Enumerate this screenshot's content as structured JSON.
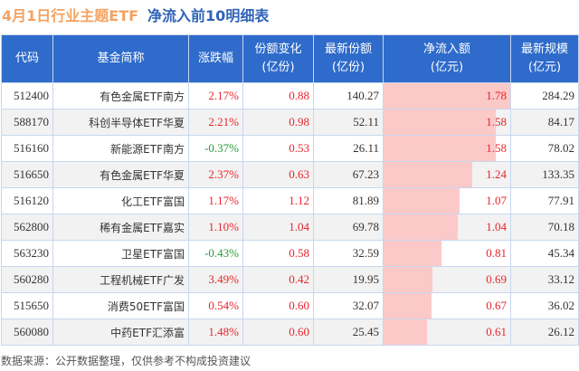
{
  "title": {
    "part1": "4月1日行业主题ETF",
    "part2": "净流入前10明细表"
  },
  "headers": [
    "代码",
    "基金简称",
    "涨跌幅",
    "份额变化\n(亿份)",
    "最新份额\n(亿份)",
    "净流入额\n(亿元)",
    "最新规模\n(亿元)"
  ],
  "rows": [
    [
      "512400",
      "有色金属ETF南方",
      "2.17%",
      "0.88",
      "140.27",
      "1.78",
      "284.29"
    ],
    [
      "588170",
      "科创半导体ETF华夏",
      "2.21%",
      "0.98",
      "52.11",
      "1.58",
      "84.17"
    ],
    [
      "516160",
      "新能源ETF南方",
      "-0.37%",
      "0.53",
      "26.11",
      "1.58",
      "78.02"
    ],
    [
      "516650",
      "有色金属ETF华夏",
      "2.37%",
      "0.63",
      "67.23",
      "1.24",
      "133.35"
    ],
    [
      "516120",
      "化工ETF富国",
      "1.17%",
      "1.12",
      "81.89",
      "1.07",
      "77.91"
    ],
    [
      "562800",
      "稀有金属ETF嘉实",
      "1.10%",
      "1.04",
      "69.78",
      "1.04",
      "70.18"
    ],
    [
      "563230",
      "卫星ETF富国",
      "-0.43%",
      "0.58",
      "32.59",
      "0.81",
      "45.34"
    ],
    [
      "560280",
      "工程机械ETF广发",
      "3.49%",
      "0.42",
      "19.95",
      "0.69",
      "33.12"
    ],
    [
      "515650",
      "消费50ETF富国",
      "0.54%",
      "0.60",
      "32.07",
      "0.67",
      "36.02"
    ],
    [
      "560080",
      "中药ETF汇添富",
      "1.48%",
      "0.60",
      "25.45",
      "0.61",
      "26.12"
    ]
  ],
  "footer": "数据来源：公开数据整理，仅供参考不构成投资建议",
  "colors": {
    "header": "#2f6bca",
    "up": "#e8242b",
    "down": "#2a9a3a",
    "bar": "#fcc9c9"
  }
}
